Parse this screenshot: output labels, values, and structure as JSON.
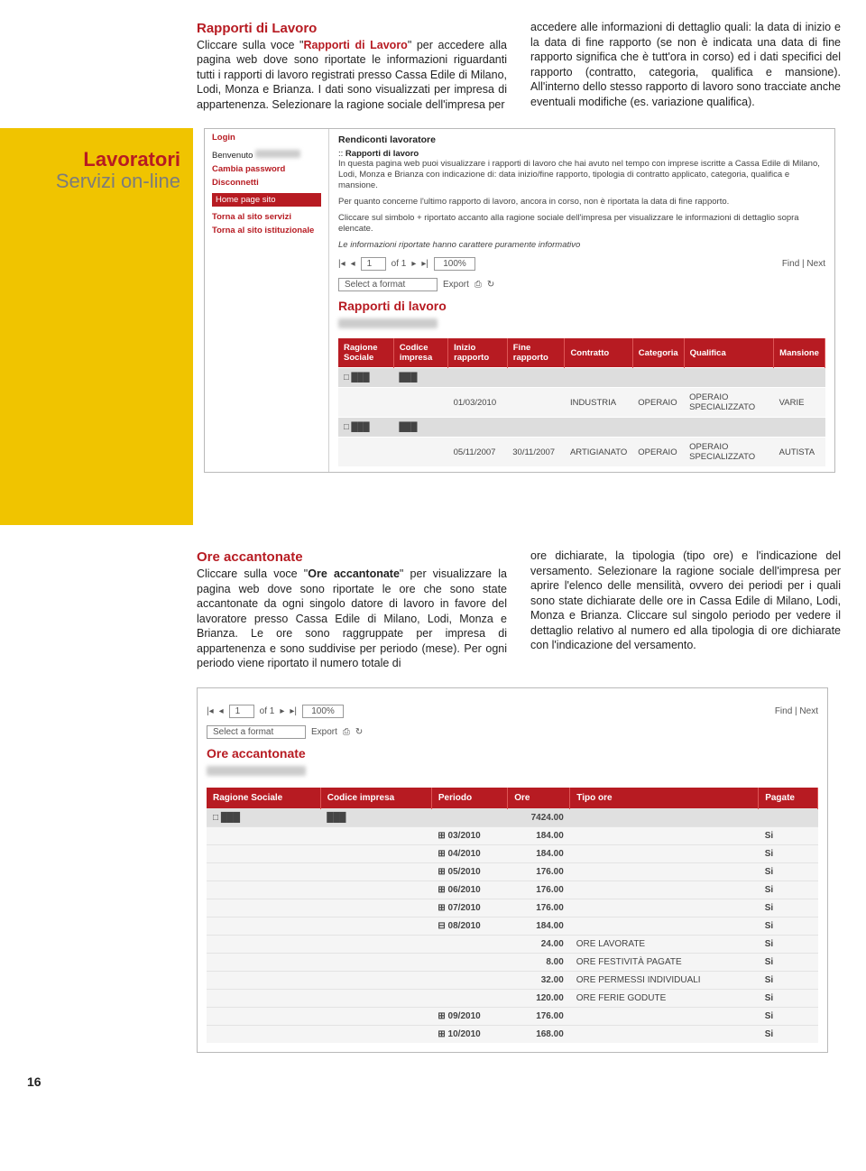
{
  "top": {
    "left": {
      "title": "Rapporti di Lavoro",
      "body_a": "Cliccare sulla voce \"",
      "link": "Rapporti di Lavoro",
      "body_b": "\" per accedere alla pagina web dove sono riportate le informazioni riguardanti tutti i rapporti di lavoro registrati presso Cassa Edile di Milano, Lodi, Monza e Brianza. I dati sono visualizzati per impresa di appartenenza.",
      "body_c": "Selezionare la ragione sociale dell'impresa per"
    },
    "right": {
      "body": "accedere alle informazioni di dettaglio quali: la data di inizio e la data di fine rapporto (se non è indicata una data di fine rapporto significa che è tutt'ora in corso) ed i dati specifici del rapporto (contratto, categoria, qualifica e mansione). All'interno dello stesso rapporto di lavoro sono tracciate anche eventuali modifiche (es. variazione qualifica)."
    }
  },
  "sidebar": {
    "title": "Lavoratori",
    "subtitle": "Servizi on-line"
  },
  "login": {
    "hdr": "Login",
    "welcome": "Benvenuto",
    "change": "Cambia password",
    "disconnect": "Disconnetti",
    "home": "Home page sito",
    "back1": "Torna al sito servizi",
    "back2": "Torna al sito istituzionale"
  },
  "panel1": {
    "bc1": "Rendiconti lavoratore",
    "bc2": "Rapporti di lavoro",
    "p1": "In questa pagina web puoi visualizzare i rapporti di lavoro che hai avuto nel tempo con imprese iscritte a Cassa Edile di Milano, Lodi, Monza e Brianza con indicazione di: data inizio/fine rapporto, tipologia di contratto applicato, categoria, qualifica e mansione.",
    "p2": "Per quanto concerne l'ultimo rapporto di lavoro, ancora in corso, non è riportata la data di fine rapporto.",
    "p3": "Cliccare sul simbolo + riportato accanto alla ragione sociale dell'impresa per visualizzare le informazioni di dettaglio sopra elencate.",
    "p4": "Le informazioni riportate hanno carattere puramente informativo",
    "toolbar": {
      "of": "of 1",
      "zoom": "100%",
      "find": "Find | Next",
      "format": "Select a format",
      "export": "Export"
    },
    "title": "Rapporti di lavoro",
    "table": {
      "headers": [
        "Ragione Sociale",
        "Codice impresa",
        "Inizio rapporto",
        "Fine rapporto",
        "Contratto",
        "Categoria",
        "Qualifica",
        "Mansione"
      ],
      "rows": [
        {
          "rag": "□ ███",
          "cod": "███"
        },
        {
          "ini": "01/03/2010",
          "con": "INDUSTRIA",
          "cat": "OPERAIO",
          "qua": "OPERAIO SPECIALIZZATO",
          "man": "VARIE"
        },
        {
          "rag": "□ ███",
          "cod": "███"
        },
        {
          "ini": "05/11/2007",
          "fin": "30/11/2007",
          "con": "ARTIGIANATO",
          "cat": "OPERAIO",
          "qua": "OPERAIO SPECIALIZZATO",
          "man": "AUTISTA"
        }
      ]
    }
  },
  "mid": {
    "left": {
      "title": "Ore accantonate",
      "body_a": "Cliccare sulla voce \"",
      "link": "Ore accantonate",
      "body_b": "\" per visualizzare la pagina web dove sono riportate le ore che sono state accantonate da ogni singolo datore di lavoro in favore del lavoratore presso Cassa Edile di Milano, Lodi, Monza e Brianza. Le ore sono raggruppate per impresa di appartenenza e sono suddivise per periodo (mese). Per ogni periodo viene riportato il numero totale di"
    },
    "right": {
      "body": "ore dichiarate, la tipologia (tipo ore) e l'indicazione del versamento.\nSelezionare la ragione sociale dell'impresa per aprire l'elenco delle mensilità, ovvero dei periodi per i quali sono state dichiarate delle ore in Cassa Edile di Milano, Lodi, Monza e Brianza. Cliccare sul singolo periodo per vedere il dettaglio relativo al numero ed alla tipologia di ore dichiarate con l'indicazione del versamento."
    }
  },
  "panel2": {
    "title": "Ore accantonate",
    "toolbar": {
      "of": "of 1",
      "zoom": "100%",
      "find": "Find | Next",
      "format": "Select a format",
      "export": "Export"
    },
    "headers": [
      "Ragione Sociale",
      "Codice impresa",
      "Periodo",
      "Ore",
      "Tipo ore",
      "Pagate"
    ],
    "rows": [
      {
        "t": "hd",
        "rag": "□ ███",
        "cod": "███",
        "ore": "7424.00"
      },
      {
        "per": "⊞ 03/2010",
        "ore": "184.00",
        "pag": "Si"
      },
      {
        "per": "⊞ 04/2010",
        "ore": "184.00",
        "pag": "Si"
      },
      {
        "per": "⊞ 05/2010",
        "ore": "176.00",
        "pag": "Si"
      },
      {
        "per": "⊞ 06/2010",
        "ore": "176.00",
        "pag": "Si"
      },
      {
        "per": "⊞ 07/2010",
        "ore": "176.00",
        "pag": "Si"
      },
      {
        "per": "⊟ 08/2010",
        "ore": "184.00",
        "pag": "Si"
      },
      {
        "ore": "24.00",
        "tipo": "ORE LAVORATE",
        "pag": "Si"
      },
      {
        "ore": "8.00",
        "tipo": "ORE FESTIVITÀ PAGATE",
        "pag": "Si"
      },
      {
        "ore": "32.00",
        "tipo": "ORE PERMESSI INDIVIDUALI",
        "pag": "Si"
      },
      {
        "ore": "120.00",
        "tipo": "ORE FERIE GODUTE",
        "pag": "Si"
      },
      {
        "per": "⊞ 09/2010",
        "ore": "176.00",
        "pag": "Si"
      },
      {
        "per": "⊞ 10/2010",
        "ore": "168.00",
        "pag": "Si"
      }
    ]
  },
  "pagenum": "16"
}
